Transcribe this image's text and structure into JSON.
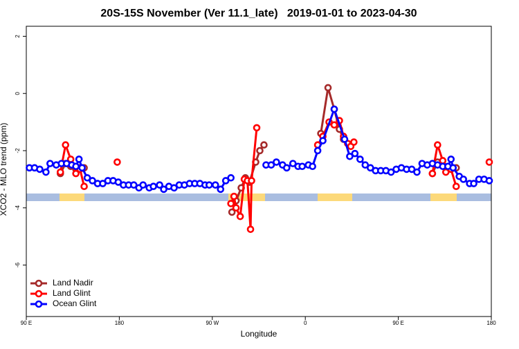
{
  "chart_data": {
    "type": "line",
    "title": "20S-15S November (Ver 11.1_late)   2019-01-01 to 2023-04-30",
    "x_label": "Longitude",
    "y_label": "XCO2 - MLO trend (ppm)",
    "xlim": [
      90,
      540
    ],
    "xticks": [
      {
        "value": 90,
        "label": "90 E"
      },
      {
        "value": 180,
        "label": "180"
      },
      {
        "value": 270,
        "label": "90 W"
      },
      {
        "value": 360,
        "label": "0"
      },
      {
        "value": 450,
        "label": "90 E"
      },
      {
        "value": 540,
        "label": "180"
      }
    ],
    "ylim": [
      -7.8,
      2.35
    ],
    "yticks": [
      2,
      0,
      -2,
      -4,
      -6
    ],
    "legend": "bottom-left",
    "series": [
      {
        "name": "Land Nadir",
        "color": "#a52a2a",
        "x": [
          123,
          128,
          133,
          138,
          142,
          146,
          null,
          289,
          293,
          298,
          302,
          306,
          312,
          316,
          320,
          null,
          375,
          382,
          388,
          393,
          397,
          null,
          483,
          488,
          493,
          498,
          506
        ],
        "values": [
          -2.8,
          -2.45,
          -2.55,
          -2.65,
          -2.6,
          -2.6,
          null,
          -4.15,
          -3.75,
          -3.3,
          -2.95,
          -3.1,
          -2.4,
          -2.0,
          -1.8,
          null,
          -1.4,
          0.2,
          -0.55,
          -1.25,
          -1.6,
          null,
          -2.8,
          -2.4,
          -2.5,
          -2.6,
          -2.6
        ]
      },
      {
        "name": "Land Glint",
        "color": "#ff0000",
        "x": [
          123,
          128,
          133,
          138,
          142,
          146,
          null,
          178,
          null,
          288,
          291,
          293,
          297,
          301,
          304,
          307,
          308,
          313,
          null,
          372,
          377,
          383,
          388,
          393,
          397,
          401,
          404,
          407,
          null,
          483,
          488,
          493,
          496,
          501,
          506,
          null,
          538
        ],
        "values": [
          -2.75,
          -1.8,
          -2.3,
          -2.8,
          -2.65,
          -3.25,
          null,
          -2.4,
          null,
          -3.85,
          -3.6,
          -4.0,
          -4.3,
          -3.0,
          -3.05,
          -4.75,
          -3.05,
          -1.2,
          null,
          -1.8,
          -1.5,
          -1.0,
          -1.1,
          -0.95,
          -1.5,
          -1.75,
          -1.85,
          -1.7,
          null,
          -2.8,
          -1.8,
          -2.35,
          -2.75,
          -2.65,
          -3.25,
          null,
          -2.4
        ]
      },
      {
        "name": "Ocean Glint",
        "color": "#0000ff",
        "x": [
          93,
          98,
          103,
          109,
          113,
          119,
          124,
          129,
          134,
          138,
          141,
          144,
          149,
          154,
          159,
          164,
          169,
          174,
          179,
          184,
          189,
          194,
          199,
          203,
          209,
          213,
          219,
          223,
          228,
          233,
          238,
          243,
          248,
          253,
          258,
          263,
          267,
          273,
          278,
          283,
          288,
          null,
          322,
          327,
          332,
          338,
          342,
          348,
          353,
          357,
          363,
          367,
          372,
          377,
          388,
          398,
          403,
          408,
          413,
          418,
          423,
          428,
          433,
          438,
          443,
          448,
          453,
          458,
          463,
          468,
          473,
          478,
          483,
          488,
          493,
          498,
          501,
          503,
          509,
          513,
          519,
          523,
          528,
          533,
          538
        ],
        "values": [
          -2.6,
          -2.6,
          -2.65,
          -2.75,
          -2.45,
          -2.5,
          -2.45,
          -2.45,
          -2.5,
          -2.55,
          -2.3,
          -2.6,
          -2.95,
          -3.05,
          -3.15,
          -3.15,
          -3.05,
          -3.05,
          -3.1,
          -3.2,
          -3.2,
          -3.2,
          -3.3,
          -3.2,
          -3.3,
          -3.25,
          -3.2,
          -3.35,
          -3.25,
          -3.3,
          -3.2,
          -3.2,
          -3.15,
          -3.15,
          -3.15,
          -3.2,
          -3.2,
          -3.2,
          -3.35,
          -3.05,
          -2.95,
          null,
          -2.5,
          -2.5,
          -2.4,
          -2.5,
          -2.6,
          -2.45,
          -2.55,
          -2.55,
          -2.5,
          -2.55,
          -2.0,
          -1.65,
          -0.55,
          -1.6,
          -2.2,
          -2.1,
          -2.3,
          -2.5,
          -2.6,
          -2.7,
          -2.7,
          -2.7,
          -2.75,
          -2.65,
          -2.6,
          -2.65,
          -2.65,
          -2.75,
          -2.45,
          -2.5,
          -2.45,
          -2.5,
          -2.55,
          -2.55,
          -2.3,
          -2.6,
          -2.9,
          -3.0,
          -3.15,
          -3.15,
          -3.0,
          -3.0,
          -3.05
        ]
      }
    ]
  }
}
